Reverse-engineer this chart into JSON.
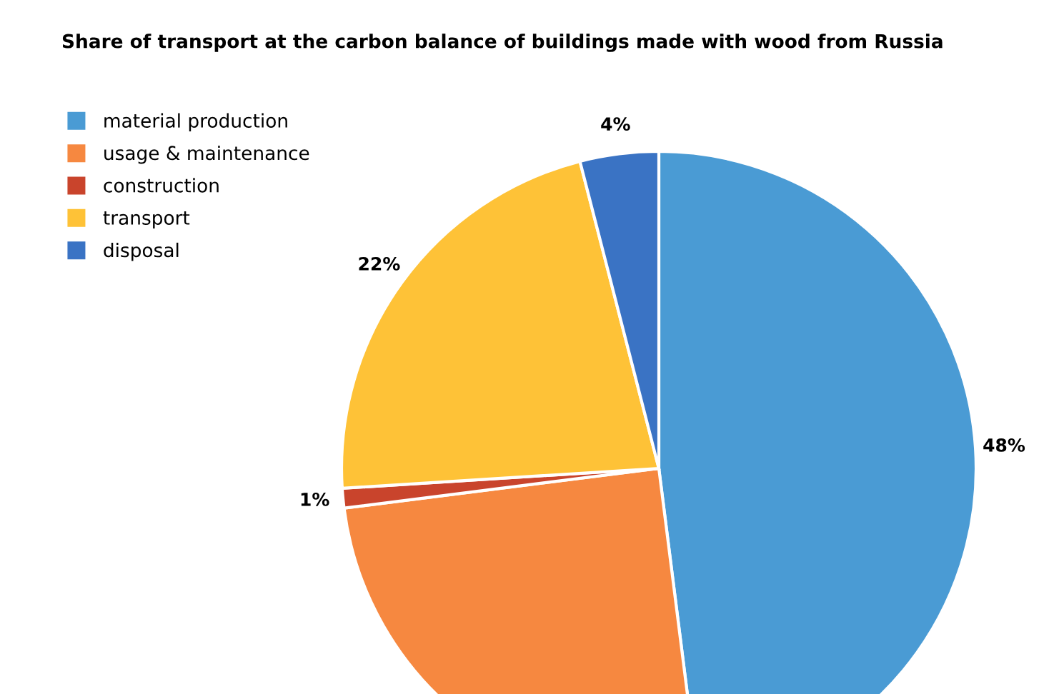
{
  "chart_data": {
    "type": "pie",
    "title": "Share of transport at the carbon balance of buildings made with wood from Russia",
    "categories": [
      "material production",
      "usage & maintenance",
      "construction",
      "transport",
      "disposal"
    ],
    "values": [
      48,
      25,
      1,
      22,
      4
    ],
    "value_labels": [
      "48%",
      null,
      "1%",
      "22%",
      "4%"
    ],
    "colors": [
      "#4a9bd4",
      "#f68840",
      "#c9442c",
      "#fec237",
      "#3a73c4"
    ],
    "legend": "top left"
  }
}
